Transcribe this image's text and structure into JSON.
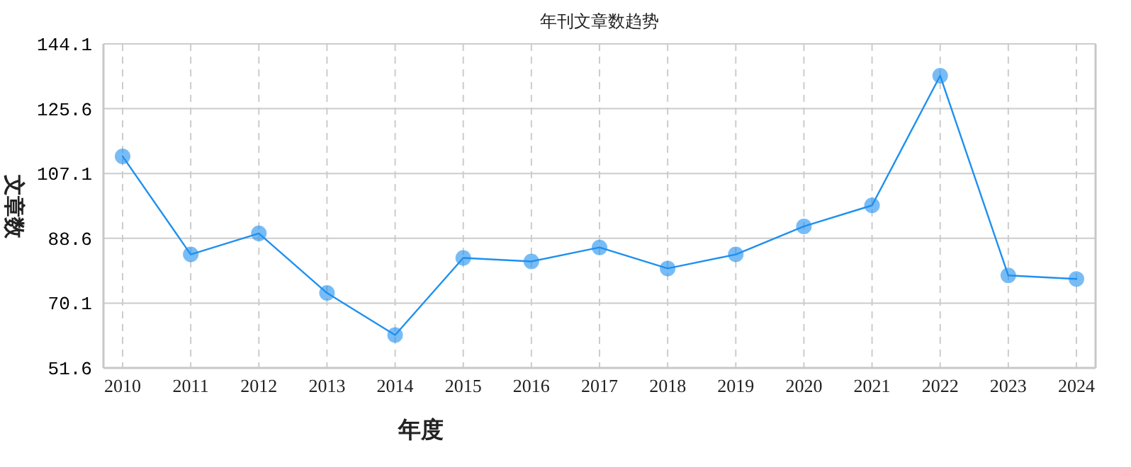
{
  "chart_data": {
    "type": "line",
    "title": "年刊文章数趋势",
    "xlabel": "年度",
    "ylabel": "文章数",
    "categories": [
      "2010",
      "2011",
      "2012",
      "2013",
      "2014",
      "2015",
      "2016",
      "2017",
      "2018",
      "2019",
      "2020",
      "2021",
      "2022",
      "2023",
      "2024"
    ],
    "series": [
      {
        "color": "#1e90f0",
        "values": [
          112,
          84,
          90,
          73,
          61,
          83,
          82,
          86,
          80,
          84,
          92,
          98,
          135,
          78,
          77
        ]
      }
    ],
    "ylim": [
      51.6,
      144.1
    ],
    "yticks": [
      {
        "value": 51.6,
        "label": "51.6"
      },
      {
        "value": 70.1,
        "label": "70.1"
      },
      {
        "value": 88.6,
        "label": "88.6"
      },
      {
        "value": 107.1,
        "label": "107.1"
      },
      {
        "value": 125.6,
        "label": "125.6"
      },
      {
        "value": 144.1,
        "label": "144.1"
      }
    ],
    "grid": true,
    "marker": "circle",
    "line_style": "solid"
  }
}
